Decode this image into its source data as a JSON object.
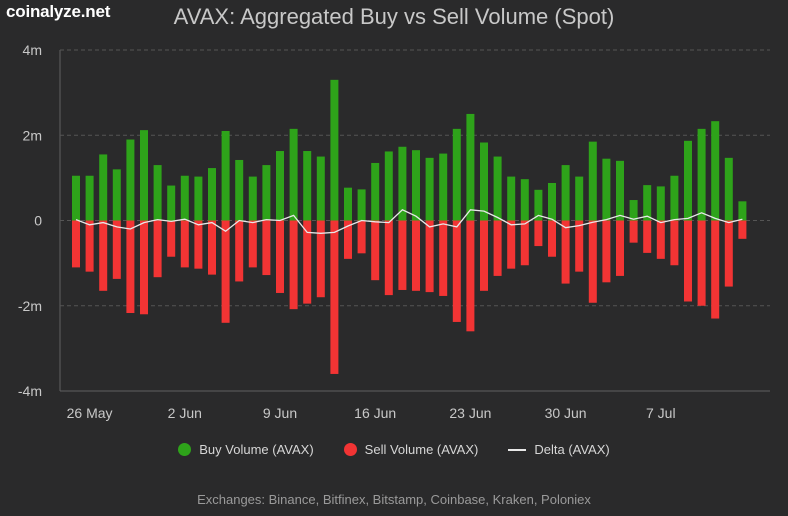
{
  "brand": "coinalyze.net",
  "footer": "Exchanges: Binance, Bitfinex, Bitstamp, Coinbase, Kraken, Poloniex",
  "colors": {
    "buy": "#2ea31a",
    "sell": "#f23434",
    "delta": "#e8e8e8",
    "background": "#2a2a2b",
    "grid": "#555555"
  },
  "chart_data": {
    "type": "bar",
    "title": "AVAX: Aggregated Buy vs Sell Volume (Spot)",
    "ylim": [
      -4,
      4
    ],
    "y_unit": "m",
    "y_ticks": [
      4,
      2,
      0,
      -2,
      -4
    ],
    "y_tick_labels": [
      "4m",
      "2m",
      "0",
      "-2m",
      "-4m"
    ],
    "x_tick_labels": [
      "26 May",
      "2 Jun",
      "9 Jun",
      "16 Jun",
      "23 Jun",
      "30 Jun",
      "7 Jul"
    ],
    "x_tick_indices": [
      1,
      8,
      15,
      22,
      29,
      36,
      43
    ],
    "grid": true,
    "legend_position": "bottom",
    "series": [
      {
        "name": "Buy Volume (AVAX)",
        "type": "bar",
        "values": [
          1.05,
          1.05,
          1.55,
          1.2,
          1.9,
          2.12,
          1.3,
          0.82,
          1.05,
          1.03,
          1.23,
          2.1,
          1.42,
          1.03,
          1.3,
          1.63,
          2.15,
          1.63,
          1.5,
          3.3,
          0.77,
          0.73,
          1.35,
          1.62,
          1.73,
          1.65,
          1.47,
          1.57,
          2.15,
          2.5,
          1.83,
          1.5,
          1.03,
          0.97,
          0.72,
          0.88,
          1.3,
          1.03,
          1.85,
          1.45,
          1.4,
          0.48,
          0.83,
          0.8,
          1.05,
          1.87,
          2.15,
          2.33,
          1.47,
          0.45
        ]
      },
      {
        "name": "Sell Volume (AVAX)",
        "type": "bar",
        "values": [
          -1.1,
          -1.2,
          -1.65,
          -1.37,
          -2.17,
          -2.2,
          -1.33,
          -0.85,
          -1.1,
          -1.13,
          -1.27,
          -2.4,
          -1.43,
          -1.1,
          -1.28,
          -1.7,
          -2.08,
          -1.95,
          -1.8,
          -3.6,
          -0.9,
          -0.77,
          -1.4,
          -1.75,
          -1.63,
          -1.65,
          -1.68,
          -1.77,
          -2.38,
          -2.6,
          -1.65,
          -1.3,
          -1.13,
          -1.05,
          -0.6,
          -0.85,
          -1.48,
          -1.2,
          -1.93,
          -1.45,
          -1.3,
          -0.52,
          -0.76,
          -0.9,
          -1.05,
          -1.9,
          -2.0,
          -2.3,
          -1.55,
          -0.43
        ]
      },
      {
        "name": "Delta (AVAX)",
        "type": "line",
        "values": [
          0.02,
          -0.1,
          -0.05,
          -0.15,
          -0.2,
          -0.05,
          0.02,
          -0.02,
          0.03,
          -0.1,
          -0.05,
          -0.25,
          0.0,
          -0.05,
          0.02,
          0.0,
          0.12,
          -0.28,
          -0.3,
          -0.28,
          -0.13,
          0.0,
          -0.03,
          -0.05,
          0.25,
          0.1,
          -0.15,
          -0.08,
          -0.15,
          0.25,
          0.22,
          0.07,
          -0.1,
          -0.08,
          0.12,
          0.03,
          -0.17,
          -0.12,
          -0.04,
          0.02,
          0.12,
          0.03,
          0.1,
          -0.05,
          0.02,
          0.05,
          0.18,
          0.05,
          -0.05,
          0.03
        ]
      }
    ]
  }
}
